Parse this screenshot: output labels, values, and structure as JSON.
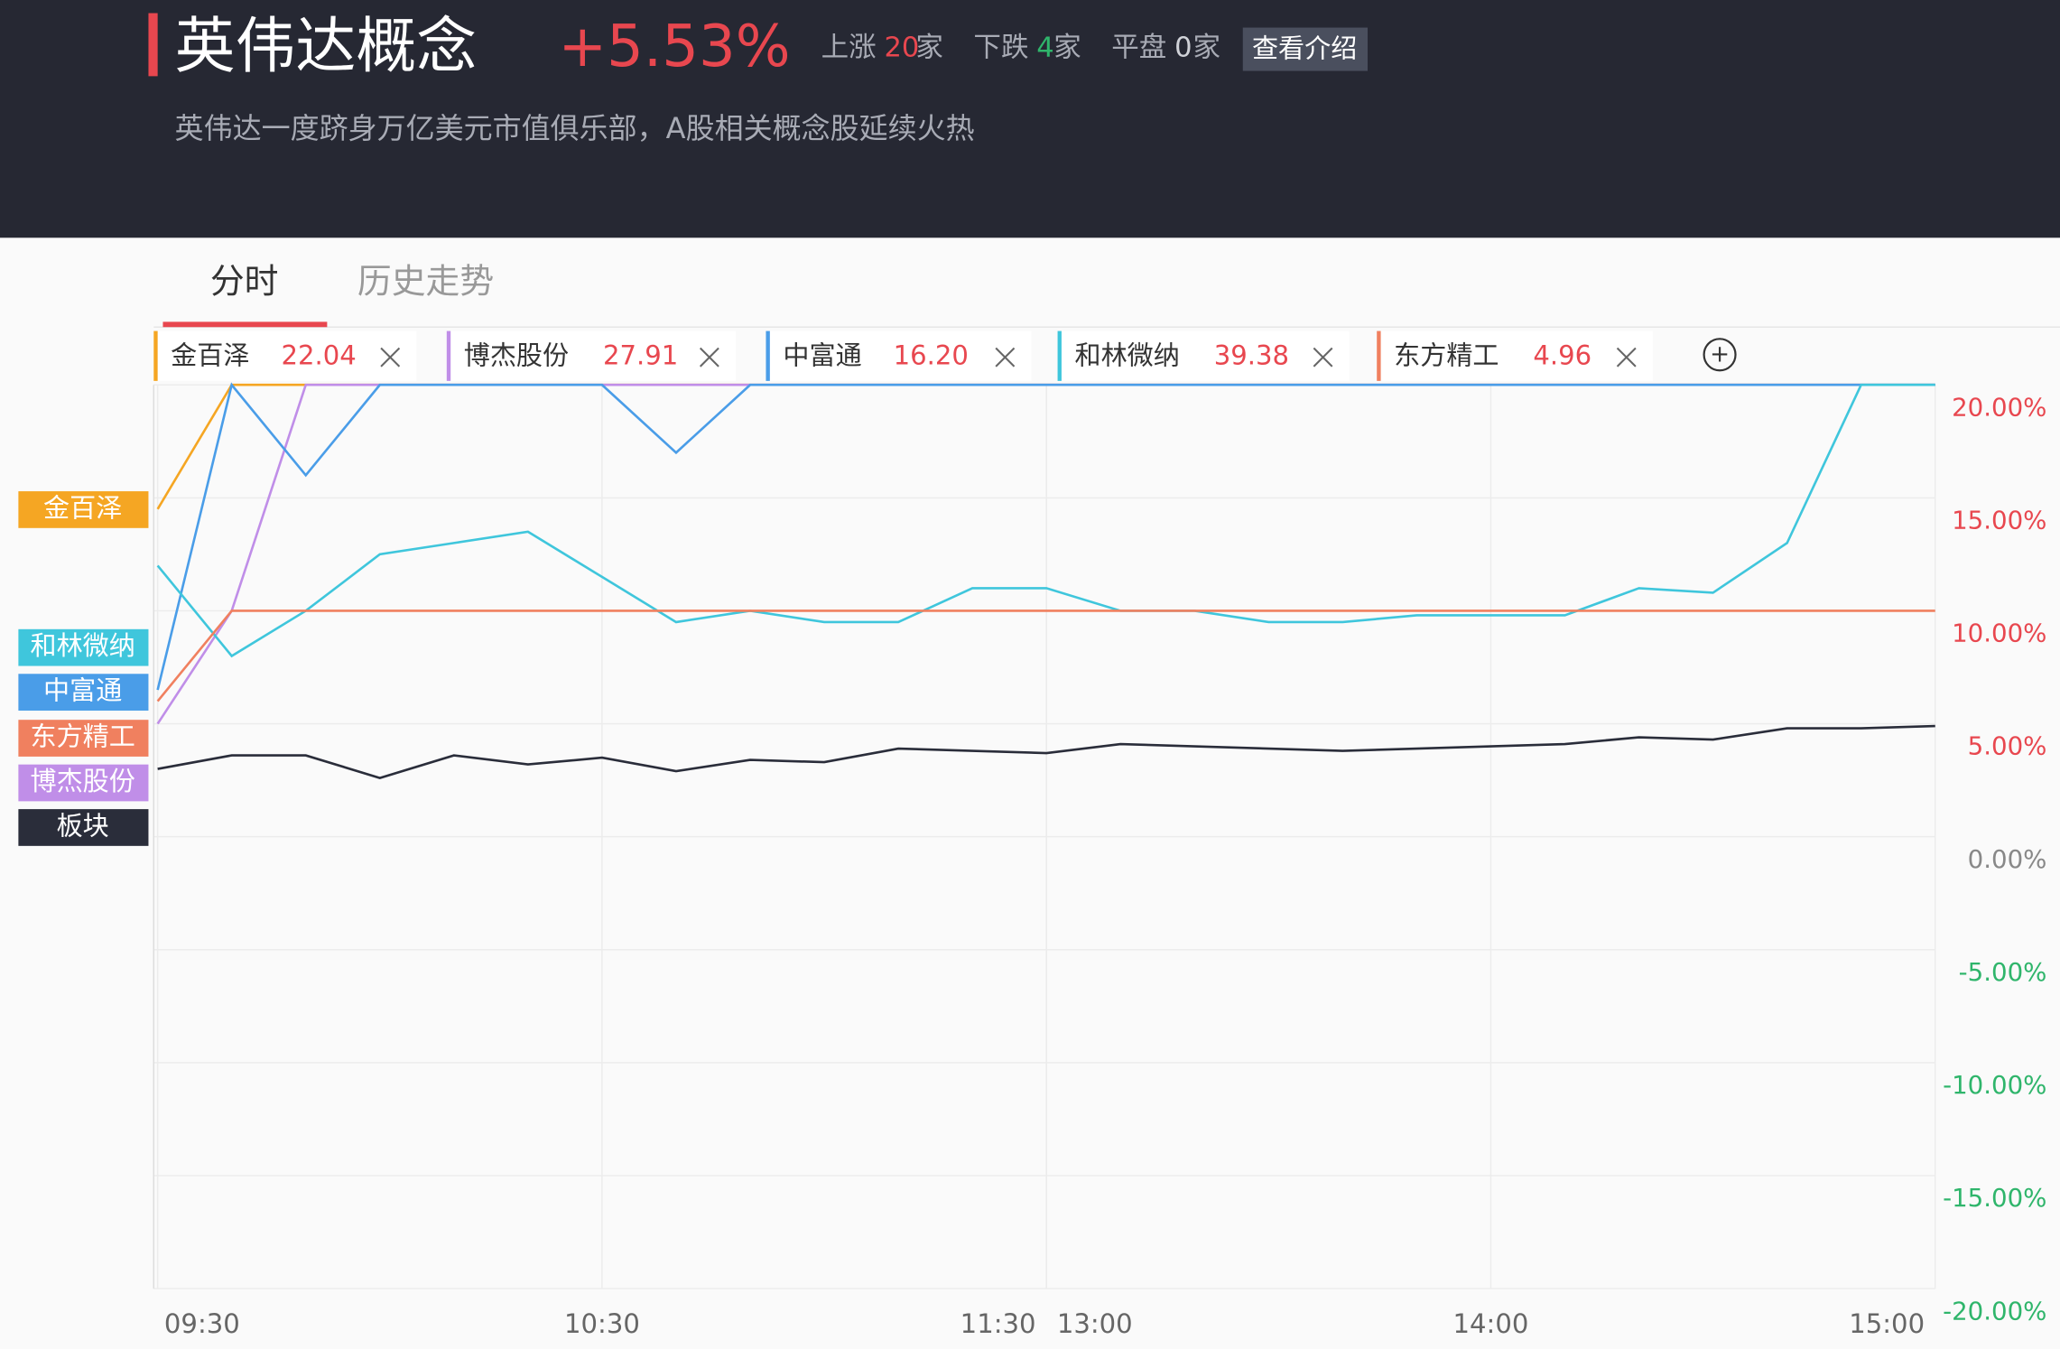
{
  "header": {
    "title": "英伟达概念",
    "change": "+5.53%",
    "up_label": "上涨",
    "up_count": "20",
    "down_label": "下跌",
    "down_count": "4",
    "flat_label": "平盘",
    "flat_count": "0",
    "unit": "家",
    "button": "查看介绍",
    "subtitle": "英伟达一度跻身万亿美元市值俱乐部，A股相关概念股延续火热"
  },
  "tabs": [
    "分时",
    "历史走势"
  ],
  "chart_data": {
    "type": "line",
    "x": [
      "09:30",
      "09:40",
      "09:50",
      "10:00",
      "10:10",
      "10:20",
      "10:30",
      "10:40",
      "10:50",
      "11:00",
      "11:10",
      "11:20",
      "11:30",
      "13:10",
      "13:20",
      "13:30",
      "13:40",
      "13:50",
      "14:00",
      "14:10",
      "14:20",
      "14:30",
      "14:40",
      "14:50",
      "15:00"
    ],
    "xticks": [
      "09:30",
      "10:30",
      "11:30",
      "13:00",
      "14:00",
      "15:00"
    ],
    "ylim": [
      -20,
      20
    ],
    "yticks": [
      {
        "value": 20,
        "label": "20.00%"
      },
      {
        "value": 15,
        "label": "15.00%"
      },
      {
        "value": 10,
        "label": "10.00%"
      },
      {
        "value": 5,
        "label": "5.00%"
      },
      {
        "value": 0,
        "label": "0.00%"
      },
      {
        "value": -5,
        "label": "-5.00%"
      },
      {
        "value": -10,
        "label": "-10.00%"
      },
      {
        "value": -15,
        "label": "-15.00%"
      },
      {
        "value": -20,
        "label": "-20.00%"
      }
    ],
    "grid": true,
    "series": [
      {
        "name": "金百泽",
        "price": "22.04",
        "color": "#f5a623",
        "values": [
          14.5,
          20,
          20,
          20,
          20,
          20,
          20,
          20,
          20,
          20,
          20,
          20,
          20,
          20,
          20,
          20,
          20,
          20,
          20,
          20,
          20,
          20,
          20,
          20,
          20
        ]
      },
      {
        "name": "博杰股份",
        "price": "27.91",
        "color": "#c08ee8",
        "values": [
          5,
          10,
          20,
          20,
          20,
          20,
          20,
          20,
          20,
          20,
          20,
          20,
          20,
          20,
          20,
          20,
          20,
          20,
          20,
          20,
          20,
          20,
          20,
          20,
          20
        ]
      },
      {
        "name": "中富通",
        "price": "16.20",
        "color": "#4a9de8",
        "values": [
          6.5,
          20,
          16,
          20,
          20,
          20,
          20,
          17,
          20,
          20,
          20,
          20,
          20,
          20,
          20,
          20,
          20,
          20,
          20,
          20,
          20,
          20,
          20,
          20,
          20
        ]
      },
      {
        "name": "和林微纳",
        "price": "39.38",
        "color": "#3fc6dc",
        "values": [
          12,
          8,
          10,
          12.5,
          13,
          13.5,
          11.5,
          9.5,
          10,
          9.5,
          9.5,
          11,
          11,
          10,
          10,
          9.5,
          9.5,
          9.8,
          9.8,
          9.8,
          11,
          10.8,
          13,
          20,
          20
        ]
      },
      {
        "name": "东方精工",
        "price": "4.96",
        "color": "#f0805f",
        "values": [
          6,
          10,
          10,
          10,
          10,
          10,
          10,
          10,
          10,
          10,
          10,
          10,
          10,
          10,
          10,
          10,
          10,
          10,
          10,
          10,
          10,
          10,
          10,
          10,
          10
        ]
      },
      {
        "name": "板块",
        "color": "#2a2d3a",
        "values": [
          3,
          3.6,
          3.6,
          2.6,
          3.6,
          3.2,
          3.5,
          2.9,
          3.4,
          3.3,
          3.9,
          3.8,
          3.7,
          4.1,
          4,
          3.9,
          3.8,
          3.9,
          4,
          4.1,
          4.4,
          4.3,
          4.8,
          4.8,
          4.9
        ]
      }
    ]
  }
}
